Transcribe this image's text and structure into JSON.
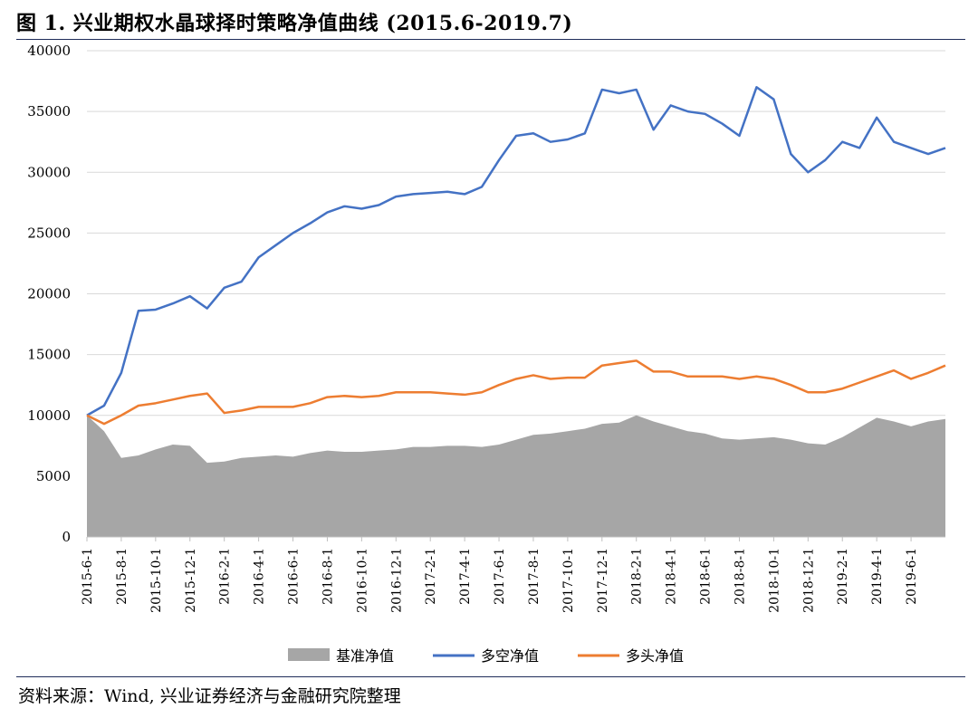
{
  "figure": {
    "title": "图 1. 兴业期权水晶球择时策略净值曲线 (2015.6-2019.7)",
    "source": "资料来源：Wind, 兴业证券经济与金融研究院整理"
  },
  "colors": {
    "benchmark": "#a6a6a6",
    "long_short": "#4472c4",
    "long_only": "#ed7d31",
    "grid": "#d9d9d9",
    "rule": "#1f2d5a"
  },
  "chart_data": {
    "type": "line",
    "title": "",
    "xlabel": "",
    "ylabel": "",
    "ylim": [
      0,
      40000
    ],
    "yticks": [
      0,
      5000,
      10000,
      15000,
      20000,
      25000,
      30000,
      35000,
      40000
    ],
    "grid": "horizontal",
    "legend_position": "bottom",
    "x": [
      "2015-6-1",
      "2015-7-1",
      "2015-8-1",
      "2015-9-1",
      "2015-10-1",
      "2015-11-1",
      "2015-12-1",
      "2016-1-1",
      "2016-2-1",
      "2016-3-1",
      "2016-4-1",
      "2016-5-1",
      "2016-6-1",
      "2016-7-1",
      "2016-8-1",
      "2016-9-1",
      "2016-10-1",
      "2016-11-1",
      "2016-12-1",
      "2017-1-1",
      "2017-2-1",
      "2017-3-1",
      "2017-4-1",
      "2017-5-1",
      "2017-6-1",
      "2017-7-1",
      "2017-8-1",
      "2017-9-1",
      "2017-10-1",
      "2017-11-1",
      "2017-12-1",
      "2018-1-1",
      "2018-2-1",
      "2018-3-1",
      "2018-4-1",
      "2018-5-1",
      "2018-6-1",
      "2018-7-1",
      "2018-8-1",
      "2018-9-1",
      "2018-10-1",
      "2018-11-1",
      "2018-12-1",
      "2019-1-1",
      "2019-2-1",
      "2019-3-1",
      "2019-4-1",
      "2019-5-1",
      "2019-6-1",
      "2019-7-1",
      "2019-7-25"
    ],
    "xticks": [
      "2015-6-1",
      "2015-8-1",
      "2015-10-1",
      "2015-12-1",
      "2016-2-1",
      "2016-4-1",
      "2016-6-1",
      "2016-8-1",
      "2016-10-1",
      "2016-12-1",
      "2017-2-1",
      "2017-4-1",
      "2017-6-1",
      "2017-8-1",
      "2017-10-1",
      "2017-12-1",
      "2018-2-1",
      "2018-4-1",
      "2018-6-1",
      "2018-8-1",
      "2018-10-1",
      "2018-12-1",
      "2019-2-1",
      "2019-4-1",
      "2019-6-1"
    ],
    "series": [
      {
        "name": "基准净值",
        "type": "area",
        "color": "#a6a6a6",
        "values": [
          10000,
          8700,
          6500,
          6700,
          7200,
          7600,
          7500,
          6100,
          6200,
          6500,
          6600,
          6700,
          6600,
          6900,
          7100,
          7000,
          7000,
          7100,
          7200,
          7400,
          7400,
          7500,
          7500,
          7400,
          7600,
          8000,
          8400,
          8500,
          8700,
          8900,
          9300,
          9400,
          10000,
          9500,
          9100,
          8700,
          8500,
          8100,
          8000,
          8100,
          8200,
          8000,
          7700,
          7600,
          8200,
          9000,
          9800,
          9500,
          9100,
          9500,
          9700
        ]
      },
      {
        "name": "多空净值",
        "type": "line",
        "color": "#4472c4",
        "values": [
          10000,
          10800,
          13500,
          18600,
          18700,
          19200,
          19800,
          18800,
          20500,
          21000,
          23000,
          24000,
          25000,
          25800,
          26700,
          27200,
          27000,
          27300,
          28000,
          28200,
          28300,
          28400,
          28200,
          28800,
          31000,
          33000,
          33200,
          32500,
          32700,
          33200,
          36800,
          36500,
          36800,
          33500,
          35500,
          35000,
          34800,
          34000,
          33000,
          37000,
          36000,
          31500,
          30000,
          31000,
          32500,
          32000,
          34500,
          32500,
          32000,
          31500,
          32000
        ]
      },
      {
        "name": "多头净值",
        "type": "line",
        "color": "#ed7d31",
        "values": [
          10000,
          9300,
          10000,
          10800,
          11000,
          11300,
          11600,
          11800,
          10200,
          10400,
          10700,
          10700,
          10700,
          11000,
          11500,
          11600,
          11500,
          11600,
          11900,
          11900,
          11900,
          11800,
          11700,
          11900,
          12500,
          13000,
          13300,
          13000,
          13100,
          13100,
          14100,
          14300,
          14500,
          13600,
          13600,
          13200,
          13200,
          13200,
          13000,
          13200,
          13000,
          12500,
          11900,
          11900,
          12200,
          12700,
          13200,
          13700,
          13000,
          13500,
          14100
        ]
      }
    ]
  },
  "legend": [
    {
      "label": "基准净值",
      "kind": "area",
      "color": "#a6a6a6"
    },
    {
      "label": "多空净值",
      "kind": "line",
      "color": "#4472c4"
    },
    {
      "label": "多头净值",
      "kind": "line",
      "color": "#ed7d31"
    }
  ]
}
